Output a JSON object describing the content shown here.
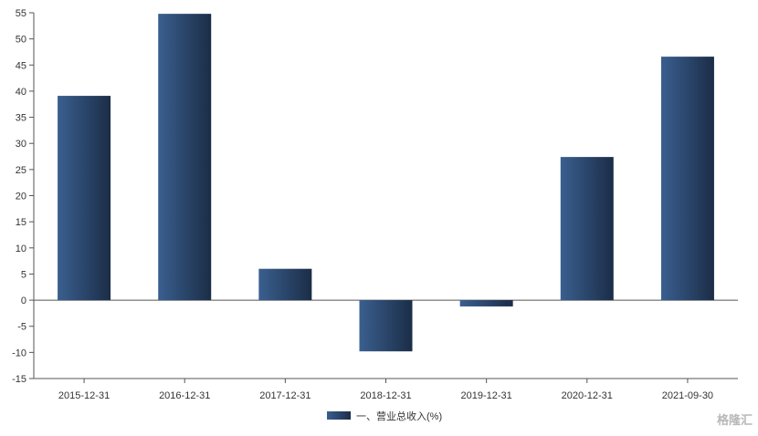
{
  "chart_data": {
    "type": "bar",
    "categories": [
      "2015-12-31",
      "2016-12-31",
      "2017-12-31",
      "2018-12-31",
      "2019-12-31",
      "2020-12-31",
      "2021-09-30"
    ],
    "series": [
      {
        "name": "一、营业总收入(%)",
        "values": [
          39.1,
          54.8,
          6.0,
          -9.8,
          -1.2,
          27.4,
          46.6
        ]
      }
    ],
    "ylim": [
      -15,
      55
    ],
    "yticks": [
      -15,
      -10,
      -5,
      0,
      5,
      10,
      15,
      20,
      25,
      30,
      35,
      40,
      45,
      50,
      55
    ],
    "grid": false,
    "legend": "bottom-center",
    "bar_gradient": [
      "#3a5f8f",
      "#1b2d47"
    ]
  },
  "watermark": "格隆汇"
}
